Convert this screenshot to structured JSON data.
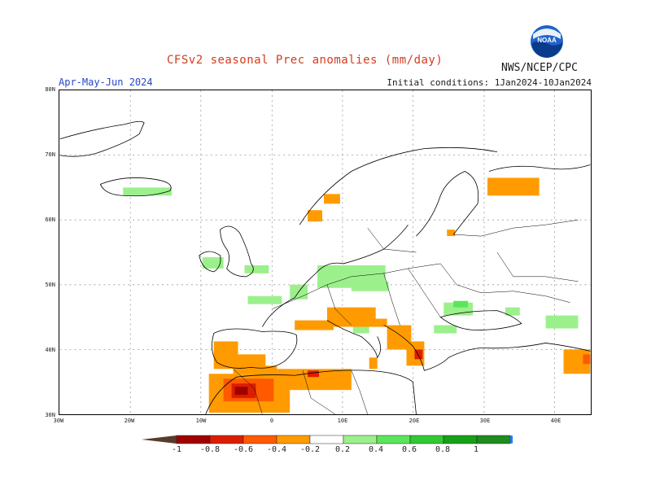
{
  "header": {
    "title": "CFSv2 seasonal Prec anomalies (mm/day)",
    "period": "Apr-May-Jun 2024",
    "initial_conditions": "Initial conditions: 1Jan2024-10Jan2024",
    "agency": "NWS/NCEP/CPC",
    "logo_text": "NOAA"
  },
  "map": {
    "lat_labels": [
      "80N",
      "70N",
      "60N",
      "50N",
      "40N",
      "30N"
    ],
    "lon_labels": [
      "30W",
      "20W",
      "10W",
      "0",
      "10E",
      "20E",
      "30E",
      "40E"
    ]
  },
  "colorbar": {
    "labels": [
      "-1",
      "-0.8",
      "-0.6",
      "-0.4",
      "-0.2",
      "0.2",
      "0.4",
      "0.6",
      "0.8",
      "1"
    ],
    "colors": [
      "#5a3a2a",
      "#a00000",
      "#dc1e00",
      "#ff5a00",
      "#ff9b00",
      "#ffffff",
      "#9cf08c",
      "#5ae65a",
      "#32c832",
      "#16a016",
      "#1e8c1e",
      "#2878f0"
    ]
  },
  "colors": {
    "orange": "#ff9b00",
    "red_orange": "#ff5a00",
    "red": "#dc1e00",
    "dark_red": "#a00000",
    "light_green": "#9cf08c",
    "green": "#5ae65a"
  }
}
